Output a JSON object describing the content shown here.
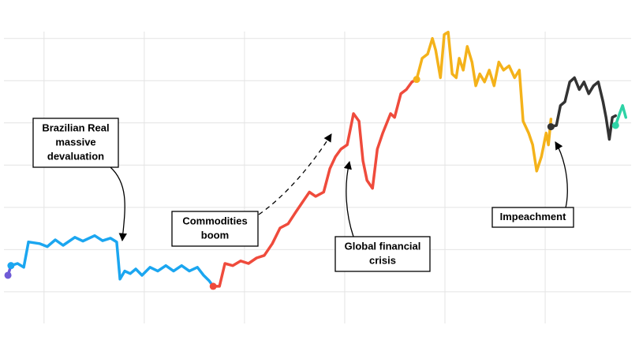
{
  "chart_data": {
    "type": "line",
    "xlim": [
      1994.4,
      2019.43
    ],
    "xticks": [
      1996,
      2000,
      2004,
      2008,
      2012,
      2016
    ],
    "ylim": [
      -0.75,
      6.35
    ],
    "yticks": [
      0,
      1,
      2,
      3,
      4,
      5,
      6
    ],
    "grid": true,
    "series": [
      {
        "color": "#6f5bd6",
        "x": [
          1994.56,
          1994.68
        ],
        "values": [
          0.39,
          0.62
        ]
      },
      {
        "color": "#1ba6f0",
        "x": [
          1994.68,
          1994.94,
          1995.19,
          1995.38,
          1995.82,
          1996.13,
          1996.45,
          1996.76,
          1997.23,
          1997.55,
          1998.02,
          1998.34,
          1998.65,
          1998.9,
          1999.03,
          1999.22,
          1999.44,
          1999.66,
          1999.91,
          2000.23,
          2000.54,
          2000.86,
          2001.17,
          2001.49,
          2001.8,
          2002.12,
          2002.37,
          2002.59,
          2002.75
        ],
        "values": [
          0.62,
          0.67,
          0.58,
          1.18,
          1.14,
          1.07,
          1.23,
          1.1,
          1.29,
          1.2,
          1.33,
          1.21,
          1.27,
          1.18,
          0.3,
          0.49,
          0.43,
          0.54,
          0.39,
          0.58,
          0.49,
          0.62,
          0.49,
          0.62,
          0.49,
          0.58,
          0.39,
          0.26,
          0.13
        ]
      },
      {
        "color": "#ef4b3c",
        "x": [
          2002.75,
          2003.0,
          2003.22,
          2003.53,
          2003.85,
          2004.16,
          2004.48,
          2004.79,
          2005.11,
          2005.42,
          2005.74,
          2006.05,
          2006.37,
          2006.59,
          2006.84,
          2007.16,
          2007.41,
          2007.63,
          2007.85,
          2008.1,
          2008.35,
          2008.57,
          2008.73,
          2008.89,
          2009.11,
          2009.3,
          2009.52,
          2009.83,
          2009.99,
          2010.24,
          2010.46,
          2010.68,
          2010.87
        ],
        "values": [
          0.13,
          0.13,
          0.67,
          0.62,
          0.73,
          0.67,
          0.8,
          0.86,
          1.14,
          1.51,
          1.61,
          1.89,
          2.17,
          2.36,
          2.26,
          2.36,
          2.92,
          3.2,
          3.38,
          3.48,
          4.22,
          4.04,
          3.1,
          2.64,
          2.45,
          3.38,
          3.76,
          4.22,
          4.13,
          4.69,
          4.79,
          4.97,
          5.03
        ]
      },
      {
        "color": "#f4b21a",
        "x": [
          2010.87,
          2011.09,
          2011.31,
          2011.5,
          2011.63,
          2011.82,
          2011.97,
          2012.13,
          2012.29,
          2012.45,
          2012.57,
          2012.73,
          2012.89,
          2013.08,
          2013.23,
          2013.39,
          2013.58,
          2013.77,
          2013.96,
          2014.15,
          2014.34,
          2014.56,
          2014.78,
          2014.97,
          2015.12,
          2015.34,
          2015.5,
          2015.66,
          2015.85,
          2016.04,
          2016.13,
          2016.23
        ],
        "values": [
          5.03,
          5.53,
          5.63,
          6.0,
          5.72,
          5.07,
          6.09,
          6.15,
          5.16,
          5.07,
          5.53,
          5.25,
          5.81,
          5.44,
          4.88,
          5.16,
          4.97,
          5.25,
          4.88,
          5.44,
          5.25,
          5.35,
          5.07,
          5.25,
          4.04,
          3.76,
          3.48,
          2.86,
          3.2,
          3.76,
          3.48,
          4.09
        ]
      },
      {
        "color": "#333333",
        "x": [
          2016.23,
          2016.45,
          2016.61,
          2016.79,
          2016.98,
          2017.17,
          2017.36,
          2017.55,
          2017.74,
          2017.93,
          2018.12,
          2018.31,
          2018.43,
          2018.56,
          2018.68,
          2018.81
        ],
        "values": [
          3.91,
          3.94,
          4.41,
          4.5,
          4.97,
          5.07,
          4.79,
          4.97,
          4.69,
          4.88,
          4.97,
          4.5,
          4.13,
          3.61,
          4.13,
          4.17
        ]
      },
      {
        "color": "#2ed3a6",
        "x": [
          2018.81,
          2018.97,
          2019.09,
          2019.22
        ],
        "values": [
          3.94,
          4.22,
          4.41,
          4.13
        ]
      }
    ],
    "annotations": [
      {
        "lines": [
          "Brazilian Real",
          "massive",
          "devaluation"
        ]
      },
      {
        "lines": [
          "Commodities",
          "boom"
        ]
      },
      {
        "lines": [
          "Global financial",
          "crisis"
        ]
      },
      {
        "lines": [
          "Impeachment"
        ]
      }
    ]
  }
}
